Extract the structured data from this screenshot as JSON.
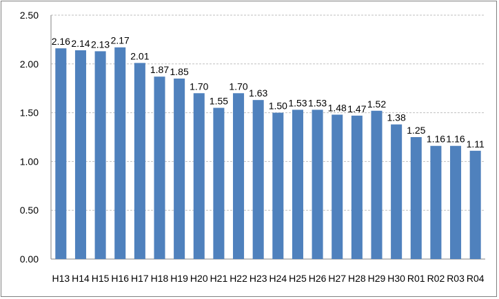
{
  "chart_data": {
    "type": "bar",
    "categories": [
      "H13",
      "H14",
      "H15",
      "H16",
      "H17",
      "H18",
      "H19",
      "H20",
      "H21",
      "H22",
      "H23",
      "H24",
      "H25",
      "H26",
      "H27",
      "H28",
      "H29",
      "H30",
      "R01",
      "R02",
      "R03",
      "R04"
    ],
    "values": [
      2.16,
      2.14,
      2.13,
      2.17,
      2.01,
      1.87,
      1.85,
      1.7,
      1.55,
      1.7,
      1.63,
      1.5,
      1.53,
      1.53,
      1.48,
      1.47,
      1.52,
      1.38,
      1.25,
      1.16,
      1.16,
      1.11
    ],
    "value_labels": [
      "2.16",
      "2.14",
      "2.13",
      "2.17",
      "2.01",
      "1.87",
      "1.85",
      "1.70",
      "1.55",
      "1.70",
      "1.63",
      "1.50",
      "1.53",
      "1.53",
      "1.48",
      "1.47",
      "1.52",
      "1.38",
      "1.25",
      "1.16",
      "1.16",
      "1.11"
    ],
    "ylim": [
      0,
      2.5
    ],
    "yticks": [
      "0.00",
      "0.50",
      "1.00",
      "1.50",
      "2.00",
      "2.50"
    ],
    "ytick_values": [
      0,
      0.5,
      1.0,
      1.5,
      2.0,
      2.5
    ],
    "grid": true,
    "legend": "none",
    "title": "",
    "xlabel": "",
    "ylabel": "",
    "colors": {
      "bar": "#4f81bd",
      "grid": "#bfbfbf",
      "axis": "#808080"
    }
  }
}
